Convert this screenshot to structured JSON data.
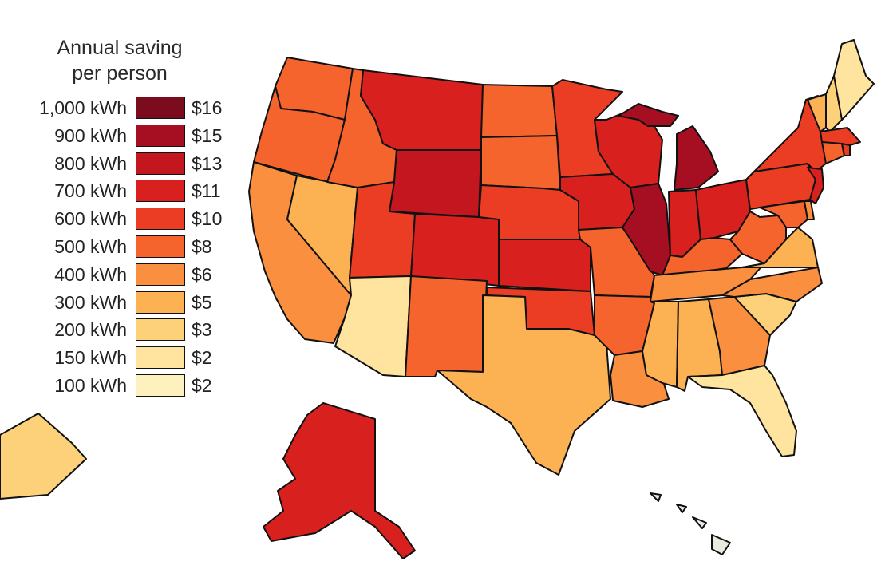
{
  "legend": {
    "title_line1": "Annual saving",
    "title_line2": "per person",
    "rows": [
      {
        "kwh": "1,000 kWh",
        "usd": "$16",
        "color": "#7a0c1e"
      },
      {
        "kwh": "900 kWh",
        "usd": "$15",
        "color": "#a50f21"
      },
      {
        "kwh": "800 kWh",
        "usd": "$13",
        "color": "#c3161f"
      },
      {
        "kwh": "700 kWh",
        "usd": "$11",
        "color": "#d8211e"
      },
      {
        "kwh": "600 kWh",
        "usd": "$10",
        "color": "#ea3d24"
      },
      {
        "kwh": "500 kWh",
        "usd": "$8",
        "color": "#f5642d"
      },
      {
        "kwh": "400 kWh",
        "usd": "$6",
        "color": "#f98f3f"
      },
      {
        "kwh": "300 kWh",
        "usd": "$5",
        "color": "#fcb153"
      },
      {
        "kwh": "200 kWh",
        "usd": "$3",
        "color": "#fdd07a"
      },
      {
        "kwh": "150 kWh",
        "usd": "$2",
        "color": "#fee49e"
      },
      {
        "kwh": "100 kWh",
        "usd": "$2",
        "color": "#fff1bd"
      }
    ]
  },
  "map": {
    "no_data_color": "#e6ede0",
    "regions": [
      {
        "name": "washington",
        "level": "500 kWh"
      },
      {
        "name": "oregon",
        "level": "500 kWh"
      },
      {
        "name": "california",
        "level": "400 kWh"
      },
      {
        "name": "nevada",
        "level": "300 kWh"
      },
      {
        "name": "idaho",
        "level": "500 kWh"
      },
      {
        "name": "montana",
        "level": "700 kWh"
      },
      {
        "name": "wyoming",
        "level": "800 kWh"
      },
      {
        "name": "utah",
        "level": "600 kWh"
      },
      {
        "name": "arizona",
        "level": "150 kWh"
      },
      {
        "name": "colorado",
        "level": "700 kWh"
      },
      {
        "name": "new-mexico",
        "level": "500 kWh"
      },
      {
        "name": "north-dakota",
        "level": "500 kWh"
      },
      {
        "name": "south-dakota",
        "level": "500 kWh"
      },
      {
        "name": "nebraska",
        "level": "600 kWh"
      },
      {
        "name": "kansas",
        "level": "700 kWh"
      },
      {
        "name": "oklahoma",
        "level": "600 kWh"
      },
      {
        "name": "texas",
        "level": "300 kWh"
      },
      {
        "name": "minnesota",
        "level": "600 kWh"
      },
      {
        "name": "iowa",
        "level": "700 kWh"
      },
      {
        "name": "missouri",
        "level": "500 kWh"
      },
      {
        "name": "arkansas",
        "level": "500 kWh"
      },
      {
        "name": "louisiana",
        "level": "400 kWh"
      },
      {
        "name": "wisconsin",
        "level": "700 kWh"
      },
      {
        "name": "illinois",
        "level": "900 kWh"
      },
      {
        "name": "michigan",
        "level": "900 kWh"
      },
      {
        "name": "indiana",
        "level": "700 kWh"
      },
      {
        "name": "ohio",
        "level": "700 kWh"
      },
      {
        "name": "kentucky",
        "level": "500 kWh"
      },
      {
        "name": "tennessee",
        "level": "400 kWh"
      },
      {
        "name": "mississippi",
        "level": "300 kWh"
      },
      {
        "name": "alabama",
        "level": "300 kWh"
      },
      {
        "name": "georgia",
        "level": "400 kWh"
      },
      {
        "name": "florida",
        "level": "150 kWh"
      },
      {
        "name": "south-carolina",
        "level": "200 kWh"
      },
      {
        "name": "north-carolina",
        "level": "400 kWh"
      },
      {
        "name": "virginia",
        "level": "300 kWh"
      },
      {
        "name": "west-virginia",
        "level": "500 kWh"
      },
      {
        "name": "pennsylvania",
        "level": "600 kWh"
      },
      {
        "name": "new-york",
        "level": "600 kWh"
      },
      {
        "name": "new-jersey",
        "level": "700 kWh"
      },
      {
        "name": "maryland",
        "level": "500 kWh"
      },
      {
        "name": "delaware",
        "level": "400 kWh"
      },
      {
        "name": "vermont",
        "level": "300 kWh"
      },
      {
        "name": "new-hampshire",
        "level": "200 kWh"
      },
      {
        "name": "maine",
        "level": "150 kWh"
      },
      {
        "name": "massachusetts",
        "level": "600 kWh"
      },
      {
        "name": "connecticut",
        "level": "500 kWh"
      },
      {
        "name": "rhode-island",
        "level": "600 kWh"
      },
      {
        "name": "alaska",
        "level": "700 kWh"
      },
      {
        "name": "hawaii",
        "level": ""
      },
      {
        "name": "puerto-rico",
        "level": "200 kWh"
      }
    ]
  }
}
